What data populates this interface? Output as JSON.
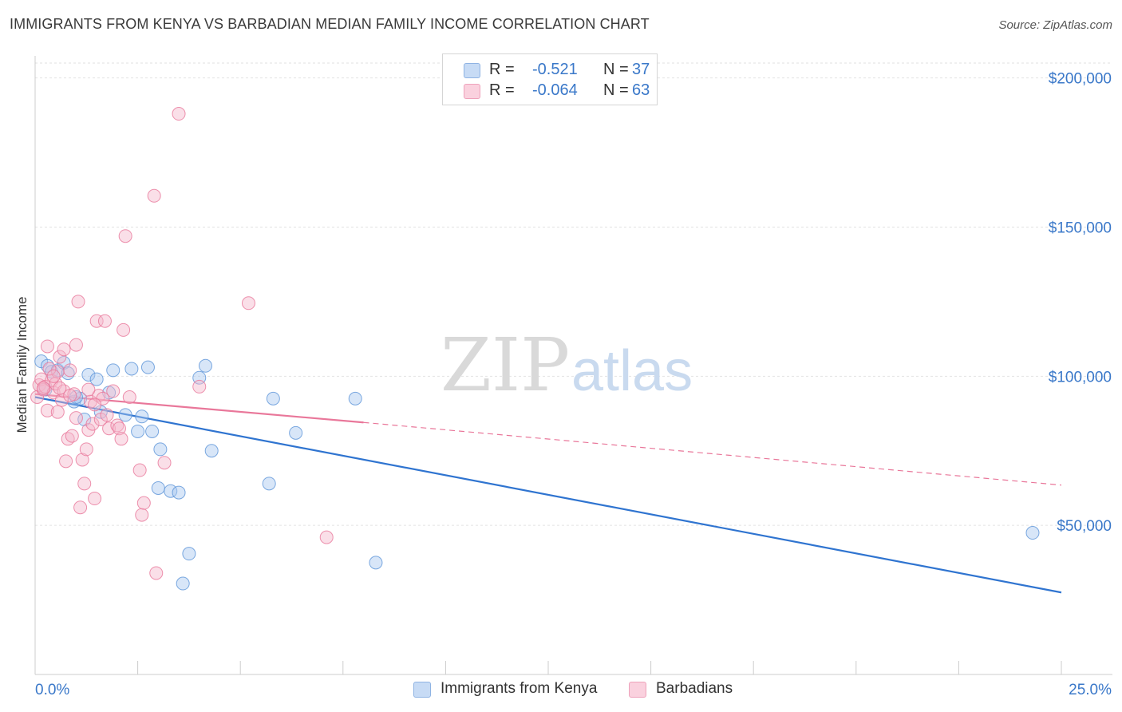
{
  "title": "IMMIGRANTS FROM KENYA VS BARBADIAN MEDIAN FAMILY INCOME CORRELATION CHART",
  "source": "Source: ZipAtlas.com",
  "watermark": {
    "zip": "ZIP",
    "atlas": "atlas"
  },
  "legend": {
    "rows": [
      {
        "r_label": "R =",
        "r_value": "-0.521",
        "n_label": "N =",
        "n_value": "37",
        "color": "#a9c7ef"
      },
      {
        "r_label": "R =",
        "r_value": "-0.064",
        "n_label": "N =",
        "n_value": "63",
        "color": "#f5b8cb"
      }
    ]
  },
  "bottom_legend": [
    {
      "label": "Immigrants from Kenya",
      "color": "#a9c7ef"
    },
    {
      "label": "Barbadians",
      "color": "#f5b8cb"
    }
  ],
  "chart_data": {
    "type": "scatter",
    "title": "IMMIGRANTS FROM KENYA VS BARBADIAN MEDIAN FAMILY INCOME CORRELATION CHART",
    "xlabel": "",
    "ylabel": "Median Family Income",
    "xlim": [
      0,
      25
    ],
    "ylim": [
      0,
      205000
    ],
    "x_tick_labels": [
      {
        "value": 0,
        "label": "0.0%"
      },
      {
        "value": 25,
        "label": "25.0%"
      }
    ],
    "y_tick_labels": [
      {
        "value": 50000,
        "label": "$50,000"
      },
      {
        "value": 100000,
        "label": "$100,000"
      },
      {
        "value": 150000,
        "label": "$150,000"
      },
      {
        "value": 200000,
        "label": "$200,000"
      }
    ],
    "grid": true,
    "series": [
      {
        "name": "Immigrants from Kenya",
        "color": "#5b93d8",
        "fill": "#a9c7ef",
        "points": [
          [
            0.15,
            105000
          ],
          [
            0.3,
            103500
          ],
          [
            0.4,
            101500
          ],
          [
            0.55,
            102000
          ],
          [
            0.7,
            104500
          ],
          [
            0.8,
            101000
          ],
          [
            0.95,
            91500
          ],
          [
            1.1,
            92500
          ],
          [
            1.3,
            100500
          ],
          [
            1.2,
            85500
          ],
          [
            1.5,
            99000
          ],
          [
            1.6,
            88000
          ],
          [
            1.8,
            94500
          ],
          [
            1.9,
            102000
          ],
          [
            2.2,
            87000
          ],
          [
            2.35,
            102500
          ],
          [
            2.5,
            81500
          ],
          [
            2.6,
            86500
          ],
          [
            2.75,
            103000
          ],
          [
            2.85,
            81500
          ],
          [
            3.0,
            62500
          ],
          [
            3.05,
            75500
          ],
          [
            3.3,
            61500
          ],
          [
            3.5,
            61000
          ],
          [
            3.6,
            30500
          ],
          [
            3.75,
            40500
          ],
          [
            4.0,
            99500
          ],
          [
            4.15,
            103500
          ],
          [
            4.3,
            75000
          ],
          [
            5.7,
            64000
          ],
          [
            5.8,
            92500
          ],
          [
            6.35,
            81000
          ],
          [
            7.8,
            92500
          ],
          [
            8.3,
            37500
          ],
          [
            24.3,
            47500
          ],
          [
            0.25,
            95500
          ],
          [
            1.0,
            93000
          ]
        ]
      },
      {
        "name": "Barbadians",
        "color": "#e9779a",
        "fill": "#f5b8cb",
        "points": [
          [
            0.05,
            93000
          ],
          [
            0.1,
            97000
          ],
          [
            0.15,
            99000
          ],
          [
            0.2,
            95500
          ],
          [
            0.25,
            96500
          ],
          [
            0.3,
            88500
          ],
          [
            0.3,
            110000
          ],
          [
            0.4,
            98500
          ],
          [
            0.45,
            94500
          ],
          [
            0.5,
            97500
          ],
          [
            0.55,
            101500
          ],
          [
            0.6,
            106500
          ],
          [
            0.65,
            92000
          ],
          [
            0.7,
            109000
          ],
          [
            0.7,
            95000
          ],
          [
            0.75,
            71500
          ],
          [
            0.8,
            79000
          ],
          [
            0.85,
            102000
          ],
          [
            0.9,
            80000
          ],
          [
            0.95,
            94000
          ],
          [
            1.0,
            110500
          ],
          [
            1.05,
            125000
          ],
          [
            1.1,
            56000
          ],
          [
            1.15,
            72000
          ],
          [
            1.2,
            64000
          ],
          [
            1.25,
            75500
          ],
          [
            1.3,
            82000
          ],
          [
            1.35,
            91500
          ],
          [
            1.4,
            84000
          ],
          [
            1.45,
            59000
          ],
          [
            1.5,
            118500
          ],
          [
            1.55,
            93500
          ],
          [
            1.6,
            85500
          ],
          [
            1.65,
            92500
          ],
          [
            1.7,
            118500
          ],
          [
            1.75,
            87000
          ],
          [
            1.8,
            82500
          ],
          [
            1.9,
            95000
          ],
          [
            2.0,
            83500
          ],
          [
            2.05,
            82500
          ],
          [
            2.1,
            79000
          ],
          [
            2.15,
            115500
          ],
          [
            2.2,
            147000
          ],
          [
            2.3,
            93000
          ],
          [
            2.55,
            68500
          ],
          [
            2.6,
            53500
          ],
          [
            2.65,
            57500
          ],
          [
            2.9,
            160500
          ],
          [
            2.95,
            34000
          ],
          [
            3.15,
            71000
          ],
          [
            3.5,
            188000
          ],
          [
            4.0,
            96500
          ],
          [
            5.2,
            124500
          ],
          [
            7.1,
            46000
          ],
          [
            0.6,
            96000
          ],
          [
            1.0,
            86000
          ],
          [
            0.35,
            102500
          ],
          [
            0.85,
            93500
          ],
          [
            1.45,
            90500
          ],
          [
            0.55,
            88000
          ],
          [
            1.3,
            95500
          ],
          [
            0.2,
            96000
          ],
          [
            0.45,
            100000
          ]
        ]
      }
    ],
    "trendlines": [
      {
        "series": "Immigrants from Kenya",
        "x0": 0,
        "y0": 93000,
        "x1": 25,
        "y1": 27500,
        "style": "solid"
      },
      {
        "series": "Barbadians",
        "x0": 0,
        "y0": 94000,
        "x1": 8.0,
        "y1": 84500,
        "style": "solid"
      },
      {
        "series": "Barbadians",
        "x0": 8.0,
        "y0": 84500,
        "x1": 25,
        "y1": 63500,
        "style": "dashed"
      }
    ]
  }
}
